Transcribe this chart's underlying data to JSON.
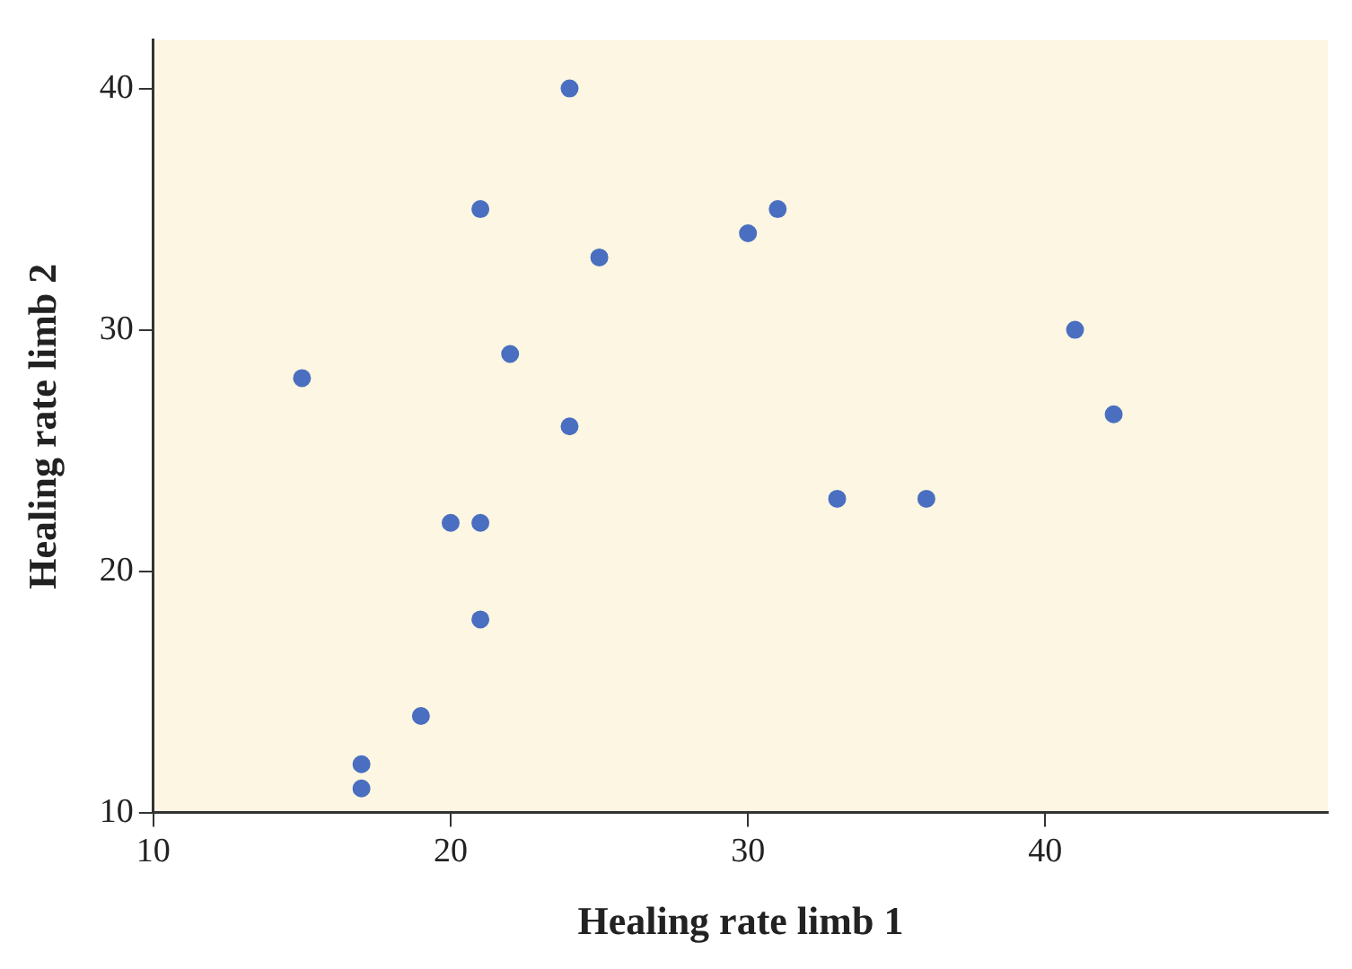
{
  "chart_data": {
    "type": "scatter",
    "xlabel": "Healing rate limb 1",
    "ylabel": "Healing rate limb 2",
    "x": [
      15,
      17,
      17,
      19,
      20,
      21,
      21,
      21,
      22,
      24,
      24,
      25,
      30,
      31,
      33,
      36,
      41,
      42.3
    ],
    "series": [
      {
        "color": "#4a6fc0",
        "values": [
          28,
          11,
          12,
          14,
          22,
          22,
          18,
          35,
          29,
          40,
          26,
          33,
          34,
          35,
          23,
          23,
          30,
          26.5
        ]
      }
    ],
    "xlim": [
      10,
      49.5
    ],
    "xticks": [
      10,
      20,
      30,
      40
    ],
    "ylim": [
      10,
      42
    ],
    "yticks": [
      10,
      20,
      30,
      40
    ],
    "grid": false,
    "legend": false,
    "marker": "circle"
  }
}
